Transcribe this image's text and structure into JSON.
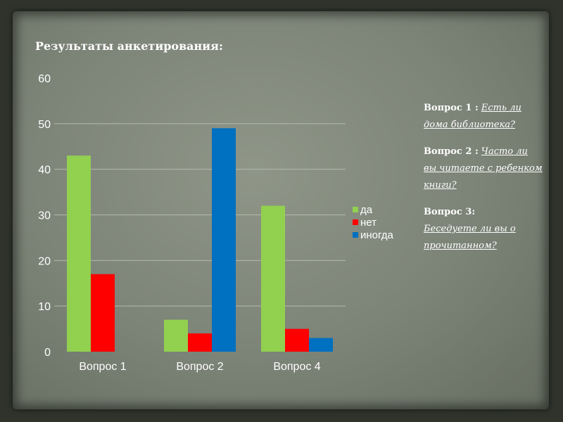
{
  "slide": {
    "title": "Результаты анкетирования:"
  },
  "chart_data": {
    "type": "bar",
    "title": "Результаты анкетирования:",
    "categories": [
      "Вопрос 1",
      "Вопрос 2",
      "Вопрос 4"
    ],
    "series": [
      {
        "name": "да",
        "color": "#92d050",
        "values": [
          43,
          7,
          32
        ]
      },
      {
        "name": "нет",
        "color": "#ff0000",
        "values": [
          17,
          4,
          5
        ]
      },
      {
        "name": "иногда",
        "color": "#0070c0",
        "values": [
          0,
          49,
          3
        ]
      }
    ],
    "ylim": [
      0,
      60
    ],
    "yticks": [
      0,
      10,
      20,
      30,
      40,
      50,
      60
    ],
    "grid": true,
    "legend_position": "right"
  },
  "questions": [
    {
      "label": "Вопрос 1 :",
      "text": "Есть ли дома библиотека?"
    },
    {
      "label": "Вопрос 2 :",
      "text": "Часто ли вы читаете с ребенком книги?"
    },
    {
      "label": "Вопрос 3:",
      "text": "Беседуете ли вы о прочитанном?"
    }
  ]
}
